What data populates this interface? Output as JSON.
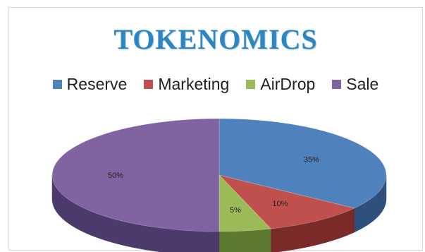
{
  "chart_data": {
    "type": "pie",
    "title": "TOKENOMICS",
    "legend_position": "top",
    "categories": [
      "Reserve",
      "Marketing",
      "AirDrop",
      "Sale"
    ],
    "values": [
      35,
      10,
      5,
      50
    ],
    "value_labels": [
      "35%",
      "10%",
      "5%",
      "50%"
    ],
    "colors": [
      "#4f81bd",
      "#c0504d",
      "#9bbb59",
      "#8064a2"
    ],
    "dark_colors": [
      "#2f4f7c",
      "#7a2a28",
      "#5e7a30",
      "#4d3a6c"
    ],
    "style": "3d"
  }
}
